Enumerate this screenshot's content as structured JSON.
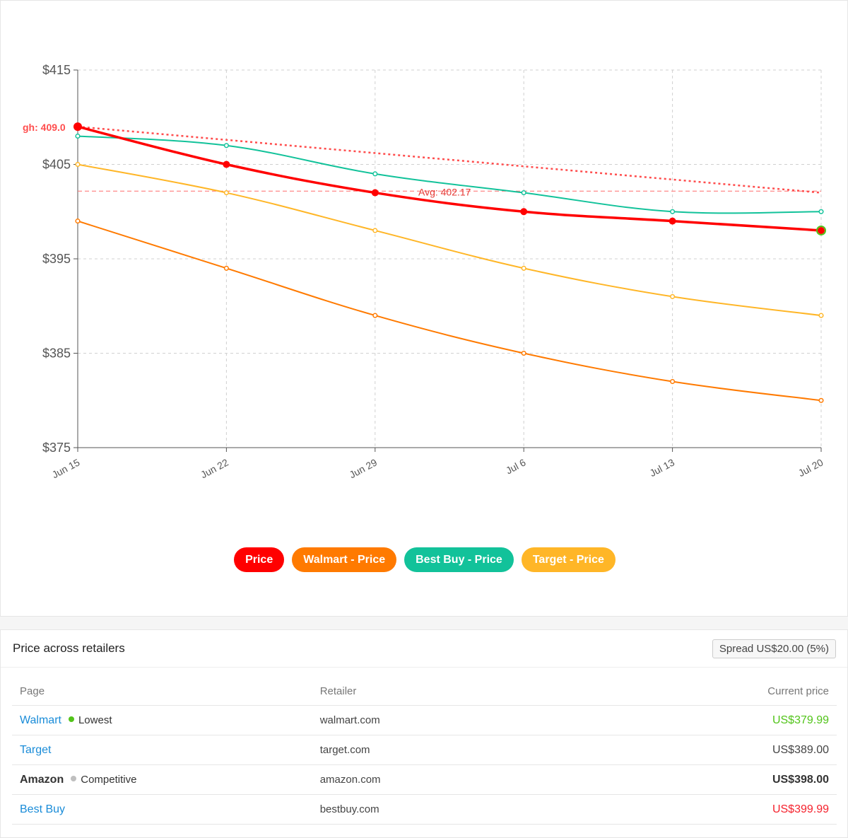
{
  "chart_data": {
    "type": "line",
    "x": [
      "Jun 15",
      "Jun 22",
      "Jun 29",
      "Jul 6",
      "Jul 13",
      "Jul 20"
    ],
    "y_ticks": [
      "$375",
      "$385",
      "$395",
      "$405",
      "$415"
    ],
    "ylim": [
      375,
      415
    ],
    "grid": true,
    "legend_position": "bottom",
    "series": [
      {
        "name": "Price",
        "color": "#ff0000",
        "values": [
          409.0,
          405.0,
          402.0,
          400.0,
          399.0,
          398.0
        ],
        "bold": true
      },
      {
        "name": "Walmart - Price",
        "color": "#ff7a00",
        "values": [
          399.0,
          394.0,
          389.0,
          385.0,
          382.0,
          380.0
        ]
      },
      {
        "name": "Best Buy - Price",
        "color": "#12c29a",
        "values": [
          408.0,
          407.0,
          404.0,
          402.0,
          400.0,
          400.0
        ]
      },
      {
        "name": "Target - Price",
        "color": "#ffb627",
        "values": [
          405.0,
          402.0,
          398.0,
          394.0,
          391.0,
          389.0
        ]
      }
    ],
    "trend_line": {
      "color": "#ff4d4d",
      "start": 409.0,
      "end": 402.0
    },
    "avg_line": {
      "label": "Avg: 402.17",
      "value": 402.17,
      "color": "#ff6b6b"
    },
    "high_label": {
      "text": "gh: 409.0",
      "value": 409.0
    }
  },
  "legend": {
    "items": [
      {
        "label": "Price",
        "color": "#ff0000"
      },
      {
        "label": "Walmart - Price",
        "color": "#ff7a00"
      },
      {
        "label": "Best Buy - Price",
        "color": "#12c29a"
      },
      {
        "label": "Target - Price",
        "color": "#ffb627"
      }
    ]
  },
  "table": {
    "title": "Price across retailers",
    "spread": "Spread US$20.00 (5%)",
    "headers": {
      "page": "Page",
      "retailer": "Retailer",
      "price": "Current price"
    },
    "rows": [
      {
        "page": "Walmart",
        "tag": "Lowest",
        "tag_color": "#52c41a",
        "retailer": "walmart.com",
        "price": "US$379.99",
        "price_color": "#52c41a"
      },
      {
        "page": "Target",
        "tag": "",
        "retailer": "target.com",
        "price": "US$389.00",
        "price_color": "#444444"
      },
      {
        "page": "Amazon",
        "tag": "Competitive",
        "tag_color": "#bfbfbf",
        "retailer": "amazon.com",
        "price": "US$398.00",
        "price_color": "#333333"
      },
      {
        "page": "Best Buy",
        "tag": "",
        "retailer": "bestbuy.com",
        "price": "US$399.99",
        "price_color": "#f5222d"
      }
    ]
  }
}
